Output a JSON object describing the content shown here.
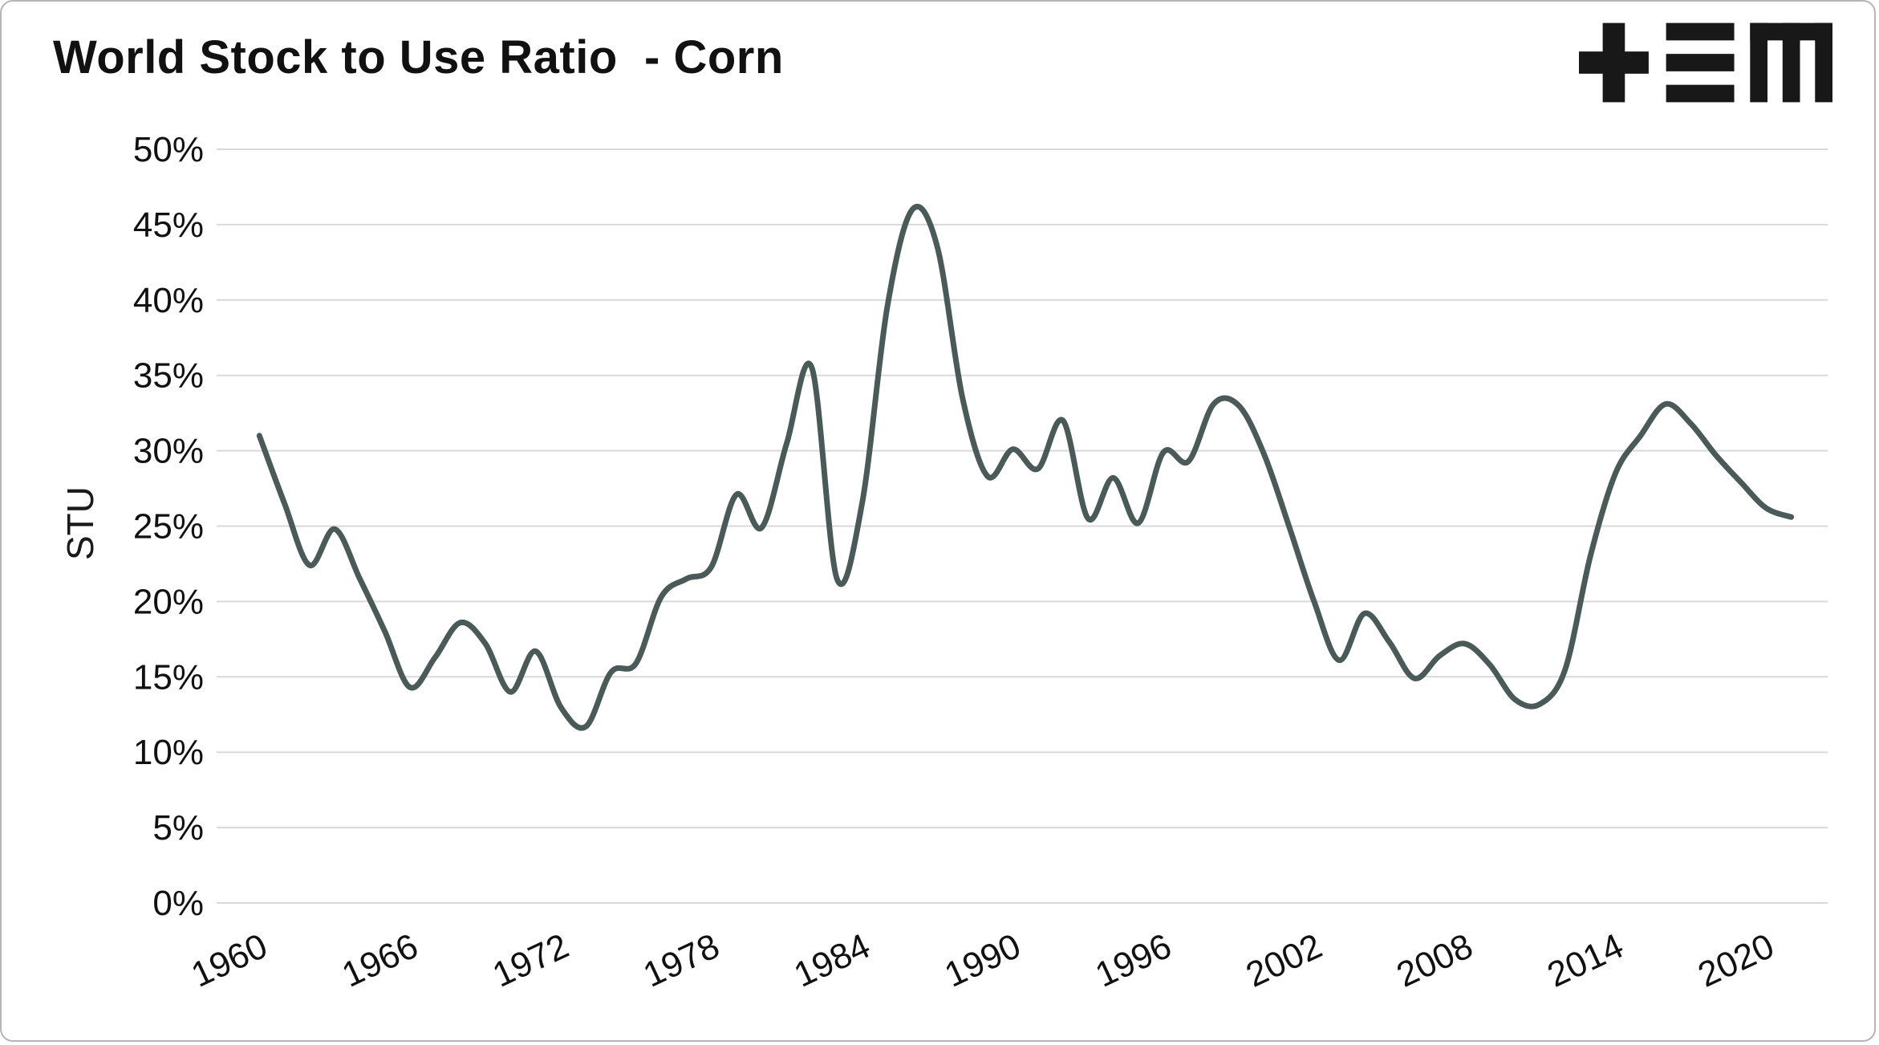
{
  "header": {
    "title": "World Stock to Use Ratio  - Corn"
  },
  "logo": {
    "name": "tem-logo",
    "color": "#181818"
  },
  "chart_data": {
    "type": "line",
    "title": "World Stock to Use Ratio - Corn",
    "xlabel": "",
    "ylabel": "STU",
    "ylim": [
      0,
      50
    ],
    "ytick_labels": [
      "0%",
      "5%",
      "10%",
      "15%",
      "20%",
      "25%",
      "30%",
      "35%",
      "40%",
      "45%",
      "50%"
    ],
    "ytick_values": [
      0,
      5,
      10,
      15,
      20,
      25,
      30,
      35,
      40,
      45,
      50
    ],
    "xticks": [
      1960,
      1966,
      1972,
      1978,
      1984,
      1990,
      1996,
      2002,
      2008,
      2014,
      2020
    ],
    "grid": "horizontal",
    "gridline_color": "#d9d9d9",
    "tick_label_color": "#111111",
    "line_color": "#4a5a59",
    "line_width": 7,
    "legend": "none",
    "series": [
      {
        "name": "World Stock to Use Ratio - Corn",
        "x": [
          1961,
          1962,
          1963,
          1964,
          1965,
          1966,
          1967,
          1968,
          1969,
          1970,
          1971,
          1972,
          1973,
          1974,
          1975,
          1976,
          1977,
          1978,
          1979,
          1980,
          1981,
          1982,
          1983,
          1984,
          1985,
          1986,
          1987,
          1988,
          1989,
          1990,
          1991,
          1992,
          1993,
          1994,
          1995,
          1996,
          1997,
          1998,
          1999,
          2000,
          2001,
          2002,
          2003,
          2004,
          2005,
          2006,
          2007,
          2008,
          2009,
          2010,
          2011,
          2012,
          2013,
          2014,
          2015,
          2016,
          2017,
          2018,
          2019,
          2020,
          2021,
          2022
        ],
        "y": [
          31.0,
          26.5,
          22.4,
          24.8,
          21.5,
          18.0,
          14.3,
          16.3,
          18.6,
          17.2,
          14.0,
          16.7,
          13.0,
          11.7,
          15.3,
          15.9,
          20.3,
          21.5,
          22.3,
          27.1,
          24.9,
          30.5,
          35.5,
          21.5,
          26.5,
          39.5,
          46.0,
          43.5,
          33.5,
          28.3,
          30.1,
          28.8,
          32.0,
          25.5,
          28.2,
          25.2,
          29.9,
          29.3,
          33.1,
          33.0,
          29.8,
          25.0,
          20.0,
          16.1,
          19.2,
          17.3,
          14.9,
          16.4,
          17.2,
          15.8,
          13.5,
          13.2,
          15.5,
          23.0,
          28.5,
          31.0,
          33.1,
          31.8,
          29.7,
          27.9,
          26.2,
          25.6
        ]
      }
    ]
  }
}
